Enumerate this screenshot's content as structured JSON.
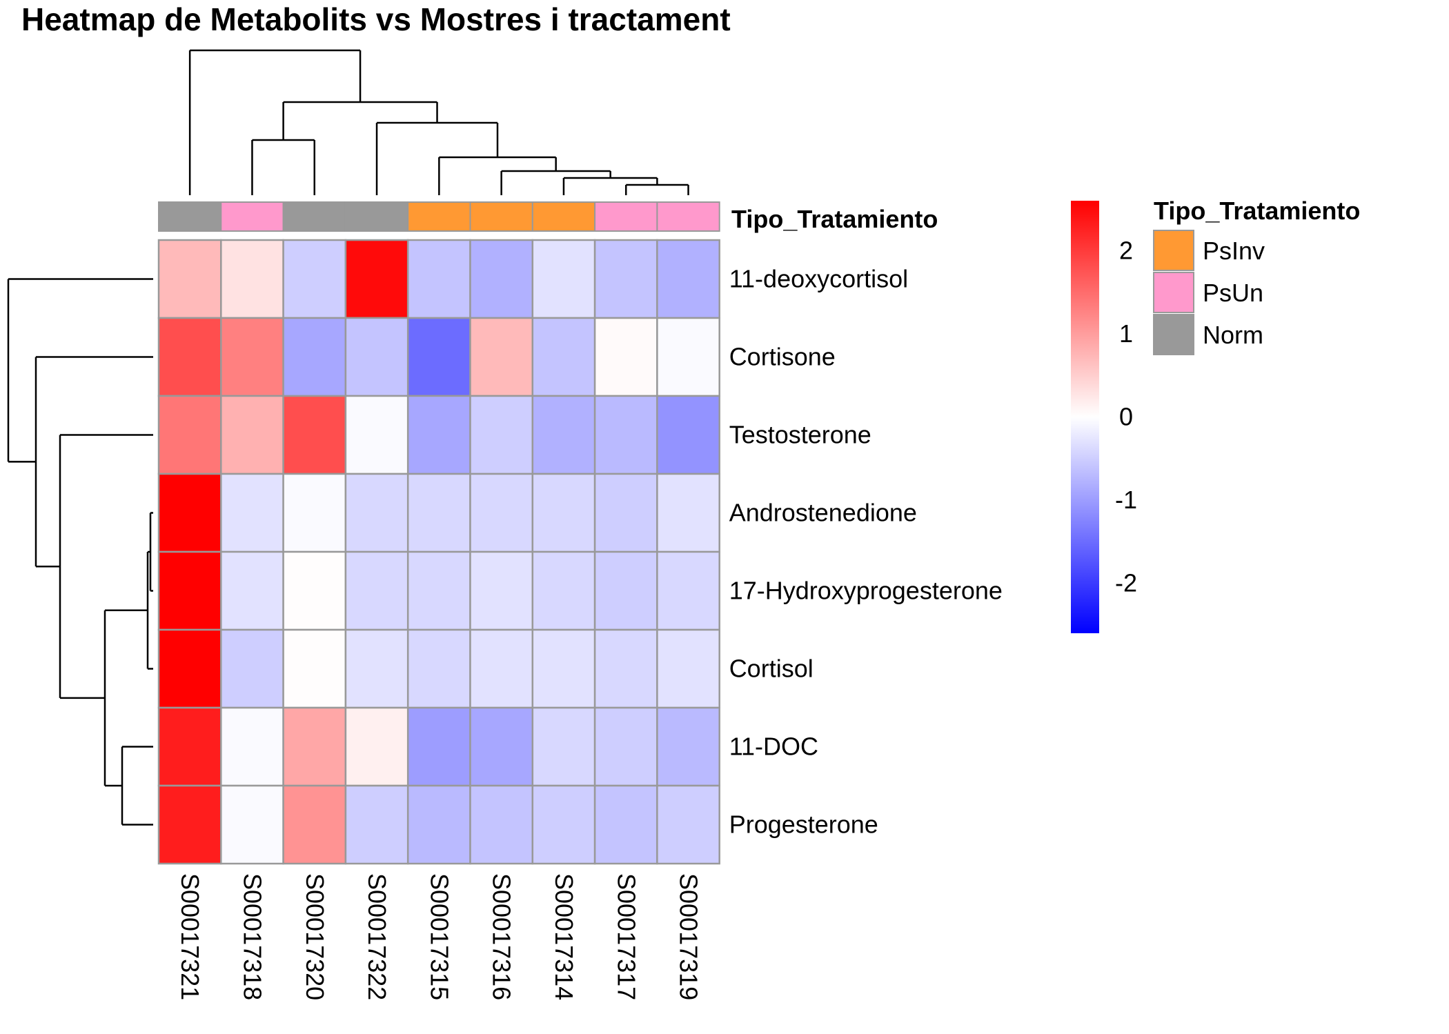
{
  "chart_data": {
    "type": "heatmap",
    "title": "Heatmap de Metabolits vs Mostres i tractament",
    "columns": [
      "S00017321",
      "S00017318",
      "S00017320",
      "S00017322",
      "S00017315",
      "S00017316",
      "S00017314",
      "S00017317",
      "S00017319"
    ],
    "rows": [
      "11-deoxycortisol",
      "Cortisone",
      "Testosterone",
      "Androstenedione",
      "17-Hydroxyprogesterone",
      "Cortisol",
      "11-DOC",
      "Progesterone"
    ],
    "values": [
      [
        0.7,
        0.3,
        -0.5,
        2.5,
        -0.6,
        -0.8,
        -0.3,
        -0.6,
        -0.8
      ],
      [
        1.8,
        1.3,
        -0.9,
        -0.6,
        -1.5,
        0.7,
        -0.6,
        0.05,
        -0.05
      ],
      [
        1.4,
        0.8,
        1.8,
        -0.05,
        -0.9,
        -0.5,
        -0.8,
        -0.7,
        -1.1
      ],
      [
        2.6,
        -0.3,
        -0.05,
        -0.4,
        -0.4,
        -0.4,
        -0.4,
        -0.5,
        -0.3
      ],
      [
        2.6,
        -0.3,
        0.02,
        -0.4,
        -0.4,
        -0.3,
        -0.4,
        -0.5,
        -0.4
      ],
      [
        2.6,
        -0.5,
        0.02,
        -0.3,
        -0.4,
        -0.3,
        -0.3,
        -0.4,
        -0.3
      ],
      [
        2.3,
        -0.05,
        0.9,
        0.15,
        -1.0,
        -0.9,
        -0.4,
        -0.5,
        -0.7
      ],
      [
        2.3,
        -0.05,
        1.1,
        -0.5,
        -0.7,
        -0.6,
        -0.5,
        -0.6,
        -0.5
      ]
    ],
    "color_scale": {
      "low": "#0000ff",
      "mid": "#ffffff",
      "high": "#ff0000",
      "range": [
        -2.6,
        2.6
      ]
    },
    "colorbar_ticks": [
      "2",
      "1",
      "0",
      "-1",
      "-2"
    ],
    "colorbar_tick_values": [
      2,
      1,
      0,
      -1,
      -2
    ],
    "annotation": {
      "label": "Tipo_Tratamiento",
      "values": [
        "Norm",
        "PsUn",
        "Norm",
        "Norm",
        "PsInv",
        "PsInv",
        "PsInv",
        "PsUn",
        "PsUn"
      ]
    },
    "legend": {
      "title": "Tipo_Tratamiento",
      "items": [
        {
          "label": "PsInv",
          "color": "#ff9933"
        },
        {
          "label": "PsUn",
          "color": "#ff99cc"
        },
        {
          "label": "Norm",
          "color": "#999999"
        }
      ]
    },
    "cell_border_color": "#999999",
    "col_dendrogram": [
      [
        7,
        8
      ],
      [
        6,
        -1
      ],
      [
        5,
        -2
      ],
      [
        4,
        -3
      ],
      [
        1,
        2
      ],
      [
        3,
        -4
      ],
      [
        -5,
        -6
      ],
      [
        0,
        -7
      ]
    ],
    "row_dendrogram": [
      [
        3,
        4
      ],
      [
        5,
        -1
      ],
      [
        6,
        7
      ],
      [
        -2,
        -3
      ],
      [
        2,
        -4
      ],
      [
        1,
        -5
      ],
      [
        0,
        -6
      ]
    ]
  }
}
